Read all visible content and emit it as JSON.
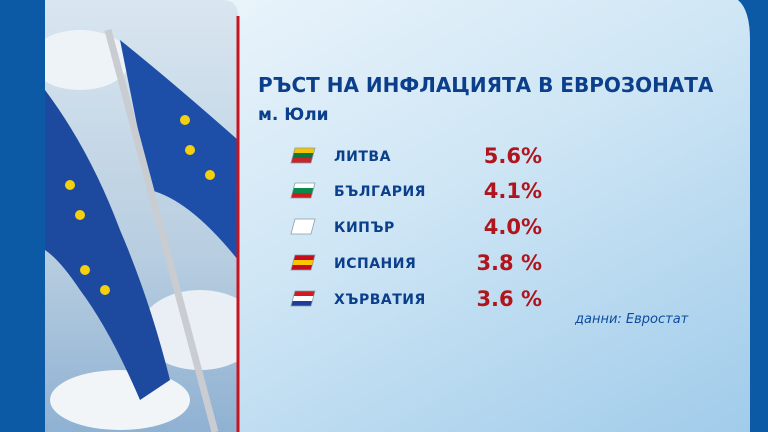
{
  "header": {
    "title": "РЪСТ НА ИНФЛАЦИЯТА В ЕВРОЗОНАТА",
    "subtitle": "м. Юли"
  },
  "table": {
    "rows": [
      {
        "country": "ЛИТВА",
        "value": "5.6%"
      },
      {
        "country": "БЪЛГАРИЯ",
        "value": "4.1%"
      },
      {
        "country": "КИПЪР",
        "value": "4.0%"
      },
      {
        "country": "ИСПАНИЯ",
        "value": "3.8 %"
      },
      {
        "country": "ХЪРВАТИЯ",
        "value": "3.6 %"
      }
    ]
  },
  "source": "данни: Евростат"
}
